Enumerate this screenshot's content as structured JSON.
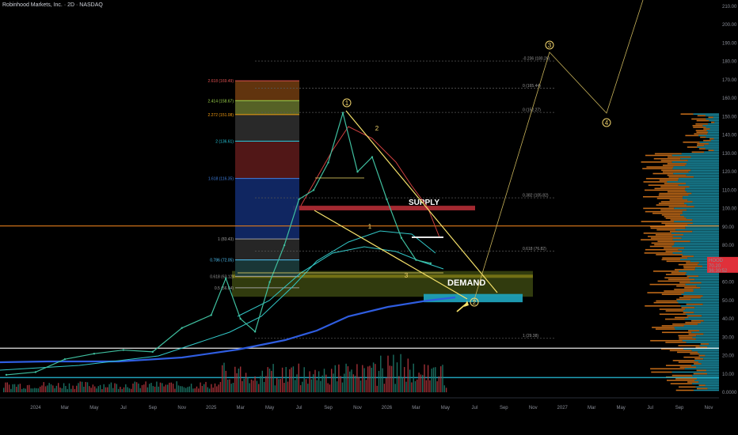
{
  "header": {
    "symbol_line": "Robinhood Markets, Inc. · 2D · NASDAQ"
  },
  "price_tag": {
    "ticker": "HOOD",
    "price": "70.20",
    "countdown": "36:30:52"
  },
  "chart_data": {
    "type": "line",
    "title": "Robinhood Markets, Inc. · 2D · NASDAQ",
    "y_axis_ticks": [
      "210.00",
      "200.00",
      "190.00",
      "180.00",
      "170.00",
      "160.00",
      "150.00",
      "140.00",
      "130.00",
      "120.00",
      "110.00",
      "100.00",
      "90.00",
      "80.00",
      "70.00",
      "60.00",
      "50.00",
      "40.00",
      "30.00",
      "20.00",
      "10.00",
      "0.0000"
    ],
    "x_axis_ticks": [
      "2024",
      "Mar",
      "May",
      "Jul",
      "Sep",
      "Nov",
      "2025",
      "Mar",
      "May",
      "Jul",
      "Sep",
      "Nov",
      "2026",
      "Mar",
      "May",
      "Jul",
      "Sep",
      "Nov",
      "2027",
      "Mar",
      "May",
      "Jul",
      "Sep",
      "Nov"
    ],
    "ylim": [
      0,
      210
    ],
    "price_series": [
      {
        "t": "2023-11",
        "v": 9.5
      },
      {
        "t": "2024-01",
        "v": 11
      },
      {
        "t": "2024-03",
        "v": 18
      },
      {
        "t": "2024-05",
        "v": 21
      },
      {
        "t": "2024-07",
        "v": 23
      },
      {
        "t": "2024-09",
        "v": 22
      },
      {
        "t": "2024-11",
        "v": 35
      },
      {
        "t": "2025-01",
        "v": 42
      },
      {
        "t": "2025-02",
        "v": 62
      },
      {
        "t": "2025-03",
        "v": 40
      },
      {
        "t": "2025-04",
        "v": 33
      },
      {
        "t": "2025-05",
        "v": 60
      },
      {
        "t": "2025-06",
        "v": 80
      },
      {
        "t": "2025-07",
        "v": 105
      },
      {
        "t": "2025-08",
        "v": 110
      },
      {
        "t": "2025-09",
        "v": 125
      },
      {
        "t": "2025-10",
        "v": 152
      },
      {
        "t": "2025-11",
        "v": 120
      },
      {
        "t": "2025-12",
        "v": 128
      },
      {
        "t": "2026-01",
        "v": 105
      },
      {
        "t": "2026-02",
        "v": 84
      },
      {
        "t": "2026-03",
        "v": 72
      },
      {
        "t": "2026-04",
        "v": 70.2
      }
    ],
    "fib_levels": [
      {
        "label": "2.618 (169.49)",
        "value": 169.49,
        "color": "#e05050"
      },
      {
        "label": "2.414 (158.67)",
        "value": 158.67,
        "color": "#9bd24a"
      },
      {
        "label": "2.272 (151.08)",
        "value": 151.08,
        "color": "#f39c12"
      },
      {
        "label": "2 (136.61)",
        "value": 136.61,
        "color": "#26c6da"
      },
      {
        "label": "1.618 (116.35)",
        "value": 116.35,
        "color": "#3f7fe0"
      },
      {
        "label": "1 (83.43)",
        "value": 83.43,
        "color": "#9e9e9e"
      },
      {
        "label": "0.786 (72.05)",
        "value": 72.05,
        "color": "#4fc3f7"
      },
      {
        "label": "0.618 (63.12)",
        "value": 63.12,
        "color": "#9e9e9e"
      },
      {
        "label": "0.5 (56.84)",
        "value": 56.84,
        "color": "#9e9e9e"
      }
    ],
    "target_levels": [
      {
        "label": "-0.236 (180.26)",
        "value": 180.26
      },
      {
        "label": "0 (165.44)",
        "value": 165.44
      },
      {
        "label": "0 (152.27)",
        "value": 152.27
      },
      {
        "label": "0.382 (105.82)",
        "value": 105.82
      },
      {
        "label": "0.618 (76.82)",
        "value": 76.82
      },
      {
        "label": "1 (29.38)",
        "value": 29.38
      }
    ],
    "horizontal_levels": [
      90.5,
      24,
      8
    ],
    "zones": [
      {
        "label": "SUPPLY",
        "low": 99,
        "high": 101.5
      },
      {
        "label": "DEMAND",
        "low": 52,
        "high": 66
      }
    ],
    "wave_labels": [
      "1",
      "2",
      "3",
      "4",
      "1",
      "2",
      "3"
    ],
    "legend": "none",
    "grid": false
  }
}
